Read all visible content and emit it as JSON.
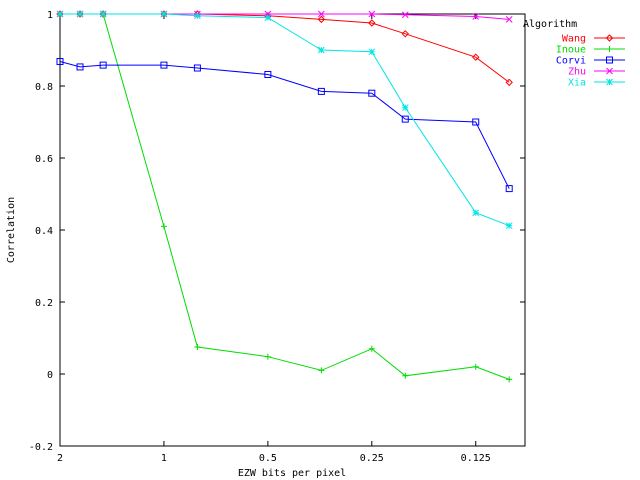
{
  "chart_data": {
    "type": "line",
    "title": "",
    "xlabel": "EZW bits per pixel",
    "ylabel": "Correlation",
    "x_scale": "log-reversed",
    "xlim": [
      2,
      0.09
    ],
    "ylim": [
      -0.2,
      1
    ],
    "x_ticks": [
      {
        "value": 2,
        "label": "2"
      },
      {
        "value": 1,
        "label": "1"
      },
      {
        "value": 0.5,
        "label": "0.5"
      },
      {
        "value": 0.25,
        "label": "0.25"
      },
      {
        "value": 0.125,
        "label": "0.125"
      }
    ],
    "y_ticks": [
      {
        "value": -0.2,
        "label": "-0.2"
      },
      {
        "value": 0,
        "label": "0"
      },
      {
        "value": 0.2,
        "label": "0.2"
      },
      {
        "value": 0.4,
        "label": "0.4"
      },
      {
        "value": 0.6,
        "label": "0.6"
      },
      {
        "value": 0.8,
        "label": "0.8"
      },
      {
        "value": 1,
        "label": "1"
      }
    ],
    "grid": false,
    "legend": {
      "title": "Algorithm",
      "placement": "top-right"
    },
    "x": [
      2,
      1.75,
      1.5,
      1,
      0.8,
      0.5,
      0.35,
      0.25,
      0.2,
      0.125,
      0.1
    ],
    "series": [
      {
        "name": "Wang",
        "color": "#ff0000",
        "marker": "diamond",
        "values": [
          1.0,
          1.0,
          1.0,
          1.0,
          1.0,
          0.995,
          0.985,
          0.975,
          0.945,
          0.88,
          0.81
        ]
      },
      {
        "name": "Inoue",
        "color": "#00dd00",
        "marker": "plus",
        "values": [
          1.0,
          1.0,
          1.0,
          0.41,
          0.075,
          0.048,
          0.01,
          0.07,
          -0.005,
          0.02,
          -0.015
        ]
      },
      {
        "name": "Corvi",
        "color": "#0000ff",
        "marker": "square",
        "values": [
          0.868,
          0.853,
          0.858,
          0.858,
          0.85,
          0.832,
          0.785,
          0.78,
          0.708,
          0.7,
          0.515
        ]
      },
      {
        "name": "Zhu",
        "color": "#ff00ff",
        "marker": "cross",
        "values": [
          1.0,
          1.0,
          1.0,
          1.0,
          1.0,
          1.0,
          1.0,
          1.0,
          0.998,
          0.993,
          0.985
        ]
      },
      {
        "name": "Xia",
        "color": "#00e5e5",
        "marker": "star",
        "values": [
          1.0,
          1.0,
          1.0,
          1.0,
          0.995,
          0.99,
          0.9,
          0.895,
          0.74,
          0.448,
          0.412
        ]
      }
    ]
  }
}
